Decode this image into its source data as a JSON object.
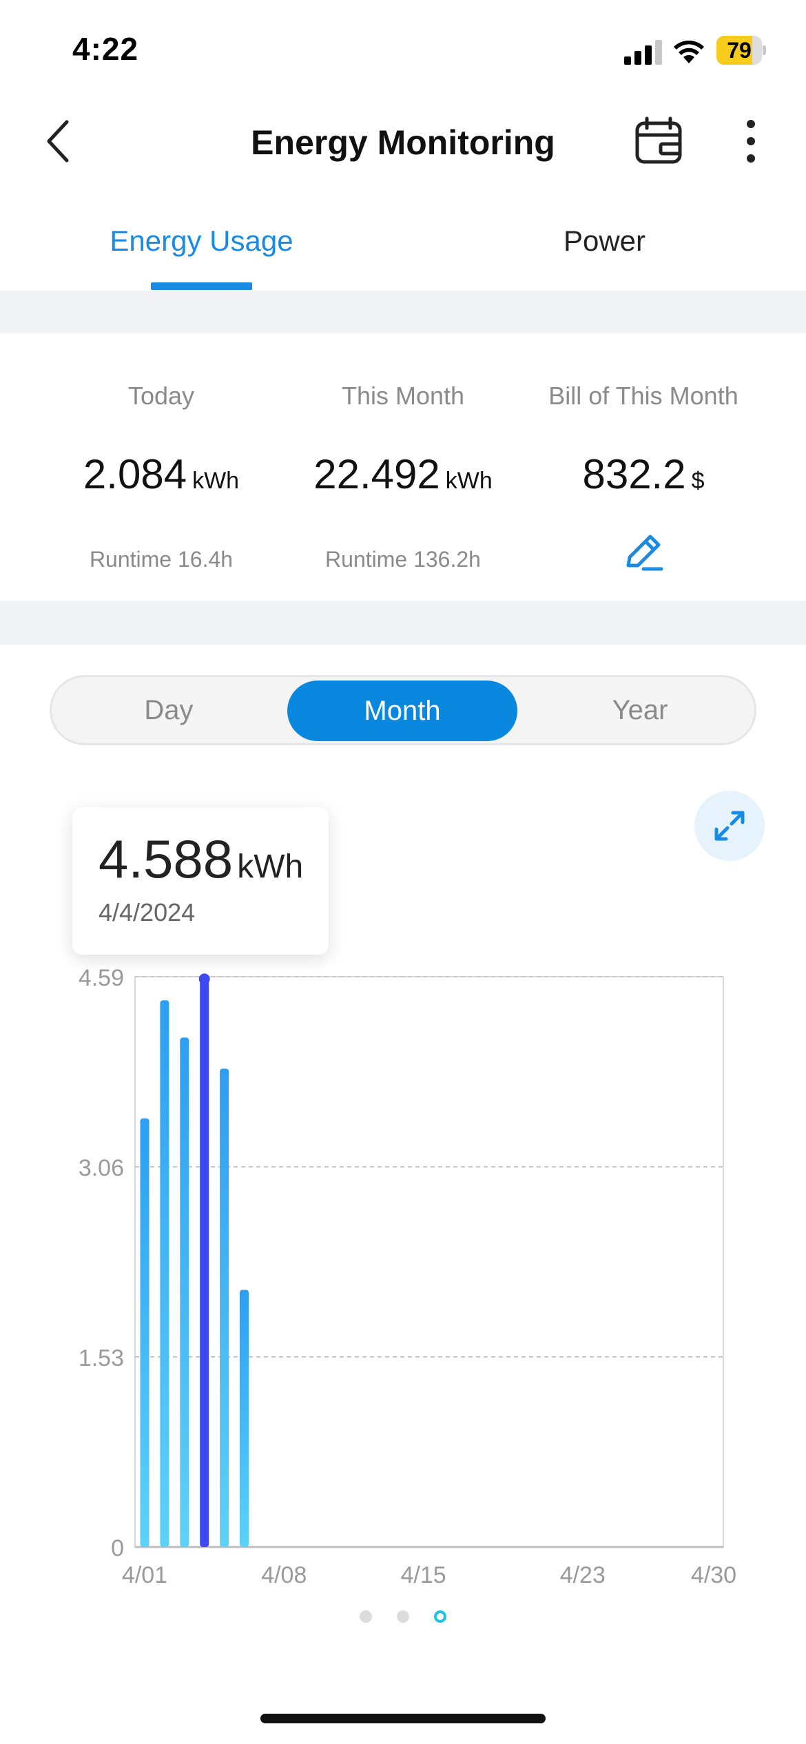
{
  "status_bar": {
    "time": "4:22",
    "battery_percent": 79,
    "battery_label": "79",
    "signal_icon": "cellular-signal-icon",
    "wifi_icon": "wifi-icon"
  },
  "nav": {
    "title": "Energy Monitoring",
    "back_icon": "chevron-left-icon",
    "calendar_icon": "calendar-icon",
    "more_icon": "more-vertical-icon"
  },
  "tabs": {
    "items": [
      {
        "label": "Energy Usage",
        "active": true
      },
      {
        "label": "Power",
        "active": false
      }
    ]
  },
  "summary": {
    "today": {
      "label": "Today",
      "value": "2.084",
      "unit": "kWh",
      "sub": "Runtime 16.4h"
    },
    "month": {
      "label": "This Month",
      "value": "22.492",
      "unit": "kWh",
      "sub": "Runtime 136.2h"
    },
    "bill": {
      "label": "Bill of This Month",
      "value": "832.2",
      "unit": "$",
      "edit_icon": "pencil-icon"
    }
  },
  "range_selector": {
    "options": [
      "Day",
      "Month",
      "Year"
    ],
    "selected": "Month"
  },
  "tooltip": {
    "value": "4.588",
    "unit": "kWh",
    "date": "4/4/2024"
  },
  "expand_icon": "expand-icon",
  "chart_data": {
    "type": "bar",
    "title": "",
    "xlabel": "",
    "ylabel": "",
    "x_ticks": [
      "4/01",
      "4/08",
      "4/15",
      "4/23",
      "4/30"
    ],
    "y_ticks": [
      "0",
      "1.53",
      "3.06",
      "4.59"
    ],
    "ylim": [
      0,
      4.59
    ],
    "xlim": [
      1,
      30
    ],
    "grid": true,
    "categories": [
      "4/01",
      "4/02",
      "4/03",
      "4/04",
      "4/05",
      "4/06"
    ],
    "values": [
      3.45,
      4.4,
      4.1,
      4.588,
      3.85,
      2.07
    ],
    "highlighted_index": 3,
    "colors": {
      "bar_top": "#2e9ef2",
      "bar_bottom": "#5cd2f7",
      "highlight": "#3c4af0"
    }
  },
  "pager": {
    "count": 3,
    "active": 2
  }
}
